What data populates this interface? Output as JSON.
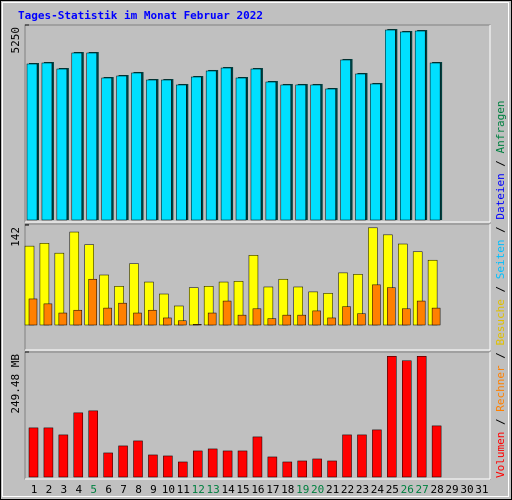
{
  "title": "Tages-Statistik im Monat Februar 2022",
  "legend_separator": " / ",
  "legend": [
    {
      "name": "Volumen",
      "color": "#ff0000"
    },
    {
      "name": "Rechner",
      "color": "#ff8000"
    },
    {
      "name": "Besuche",
      "color": "#e0c000"
    },
    {
      "name": "Seiten",
      "color": "#00c0ff"
    },
    {
      "name": "Dateien",
      "color": "#0000ff"
    },
    {
      "name": "Anfragen",
      "color": "#008040"
    }
  ],
  "chart_data": [
    {
      "type": "bar",
      "ylim": [
        0,
        5250
      ],
      "yticks": [
        5250
      ],
      "series": [
        {
          "color": "#00e0ff",
          "values": [
            4200,
            4227,
            4065,
            4496,
            4496,
            3823,
            3877,
            3958,
            3769,
            3769,
            3635,
            3850,
            4012,
            4092,
            3823,
            4065,
            3715,
            3635,
            3635,
            3635,
            3527,
            4308,
            3931,
            3662,
            5115,
            5062,
            5088,
            4227,
            null,
            null,
            null
          ]
        }
      ]
    },
    {
      "type": "bar",
      "ylim": [
        0,
        142
      ],
      "yticks": [
        142
      ],
      "series": [
        {
          "color": "#ffff00",
          "values": [
            112,
            116,
            102,
            132,
            114,
            71,
            55,
            87,
            61,
            44,
            27,
            53,
            55,
            61,
            62,
            99,
            54,
            65,
            54,
            47,
            45,
            74,
            72,
            138,
            128,
            115,
            104,
            92,
            null,
            null,
            null
          ]
        },
        {
          "color": "#ff8000",
          "values": [
            37,
            30,
            17,
            21,
            65,
            24,
            31,
            17,
            21,
            10,
            6,
            1,
            17,
            34,
            14,
            23,
            9,
            14,
            14,
            20,
            10,
            26,
            16,
            57,
            53,
            23,
            34,
            24,
            null,
            null,
            null
          ]
        }
      ]
    },
    {
      "type": "bar",
      "ylim": [
        0,
        249.48
      ],
      "yticks": [
        {
          "value": 249.48,
          "label": "249.48 MB"
        }
      ],
      "series": [
        {
          "color": "#ff0000",
          "values": [
            98,
            98,
            84,
            128,
            132,
            48,
            62,
            72,
            44,
            42,
            30,
            52,
            56,
            52,
            52,
            80,
            40,
            30,
            32,
            36,
            32,
            84,
            84,
            94,
            241,
            232,
            241,
            102,
            null,
            null,
            null
          ]
        }
      ],
      "categories": [
        "1",
        "2",
        "3",
        "4",
        "5",
        "6",
        "7",
        "8",
        "9",
        "10",
        "11",
        "12",
        "13",
        "14",
        "15",
        "16",
        "17",
        "18",
        "19",
        "20",
        "21",
        "22",
        "23",
        "24",
        "25",
        "26",
        "27",
        "28",
        "29",
        "30",
        "31"
      ],
      "category_colors": [
        "#000",
        "#000",
        "#000",
        "#000",
        "#008040",
        "#000",
        "#000",
        "#000",
        "#000",
        "#000",
        "#000",
        "#008040",
        "#008040",
        "#000",
        "#000",
        "#000",
        "#000",
        "#000",
        "#008040",
        "#008040",
        "#000",
        "#000",
        "#000",
        "#000",
        "#000",
        "#008040",
        "#008040",
        "#000",
        "#000",
        "#000",
        "#000"
      ]
    }
  ]
}
